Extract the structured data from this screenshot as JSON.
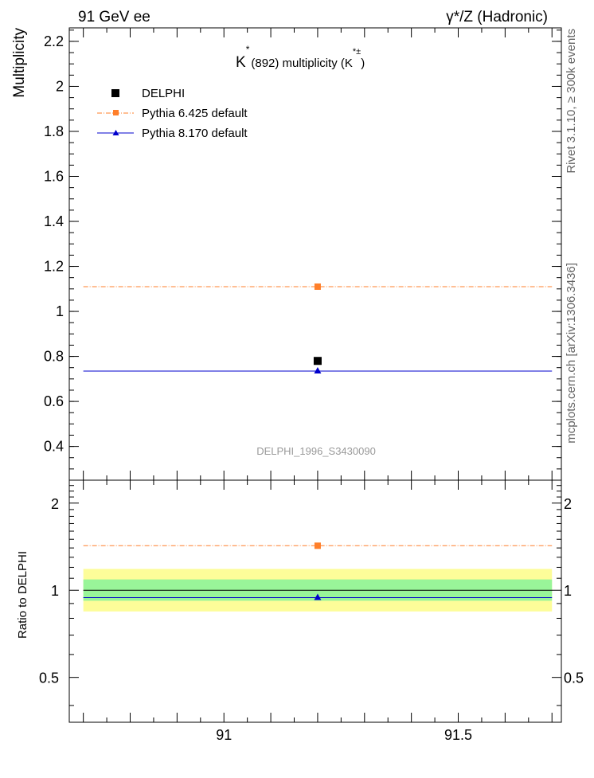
{
  "header": {
    "left": "91 GeV ee",
    "right": "γ*/Z (Hadronic)"
  },
  "side": {
    "right_top": "Rivet 3.1.10, ≥ 300k events",
    "right_bottom": "mcplots.cern.ch [arXiv:1306.3436]"
  },
  "colors": {
    "data": "#000000",
    "pythia6": "#ff7f2a",
    "pythia8": "#0000cc",
    "band_inner": "#99f599",
    "band_outer": "#fdfd99"
  },
  "chart_data": [
    {
      "type": "scatter",
      "title": "K*(892) multiplicity (K*±)",
      "title_main": "K",
      "title_sup1": "*",
      "title_mid": "(892) multiplicity (K",
      "title_sup2": "*±",
      "title_end": ")",
      "ylabel": "Multiplicity",
      "xlim": [
        90.67,
        91.72
      ],
      "ylim": [
        0.25,
        2.26
      ],
      "yticks": [
        0.4,
        0.6,
        0.8,
        1,
        1.2,
        1.4,
        1.6,
        1.8,
        2,
        2.2
      ],
      "ytick_labels": [
        "0.4",
        "0.6",
        "0.8",
        "1",
        "1.2",
        "1.4",
        "1.6",
        "1.8",
        "2",
        "2.2"
      ],
      "watermark": "DELPHI_1996_S3430090",
      "series": [
        {
          "name": "DELPHI",
          "x": [
            91.2
          ],
          "values": [
            0.78
          ],
          "style": "square-marker"
        },
        {
          "name": "Pythia 6.425 default",
          "x": [
            91.2
          ],
          "values": [
            1.11
          ],
          "style": "dash-dot-line",
          "line_x": [
            90.7,
            91.7
          ]
        },
        {
          "name": "Pythia 8.170 default",
          "x": [
            91.2
          ],
          "values": [
            0.735
          ],
          "style": "solid-line-triangle",
          "line_x": [
            90.7,
            91.7
          ]
        }
      ]
    },
    {
      "type": "scatter",
      "ylabel": "Ratio to DELPHI",
      "xlim": [
        90.67,
        91.72
      ],
      "ylim": [
        0.35,
        2.4
      ],
      "yscale": "log",
      "yticks": [
        0.5,
        1,
        2
      ],
      "ytick_labels": [
        "0.5",
        "1",
        "2"
      ],
      "xticks": [
        91,
        91.5
      ],
      "xtick_labels": [
        "91",
        "91.5"
      ],
      "band_inner": [
        0.92,
        1.09
      ],
      "band_outer": [
        0.845,
        1.185
      ],
      "band_x": [
        90.7,
        91.7
      ],
      "series": [
        {
          "name": "Pythia 6.425 default",
          "x": [
            91.2
          ],
          "values": [
            1.425
          ]
        },
        {
          "name": "Pythia 8.170 default",
          "x": [
            91.2
          ],
          "values": [
            0.943
          ]
        }
      ]
    }
  ]
}
